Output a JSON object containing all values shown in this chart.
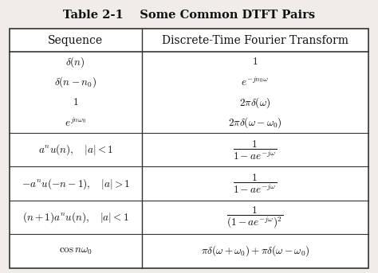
{
  "title": "Table 2-1    Some Common DTFT Pairs",
  "col1_header": "Sequence",
  "col2_header": "Discrete-Time Fourier Transform",
  "group1": [
    [
      "$\\delta(n)$",
      "$1$"
    ],
    [
      "$\\delta(n - n_0)$",
      "$e^{-jn_0\\omega}$"
    ],
    [
      "$1$",
      "$2\\pi\\delta(\\omega)$"
    ],
    [
      "$e^{jn\\omega_0}$",
      "$2\\pi\\delta(\\omega - \\omega_0)$"
    ]
  ],
  "group2": [
    [
      "$a^nu(n), \\quad |a| < 1$",
      "$\\dfrac{1}{1 - ae^{-j\\omega}}$"
    ],
    [
      "$-a^nu(-n-1), \\quad |a| > 1$",
      "$\\dfrac{1}{1 - ae^{-j\\omega}}$"
    ],
    [
      "$(n+1)a^nu(n), \\quad |a| < 1$",
      "$\\dfrac{1}{(1 - ae^{-j\\omega})^2}$"
    ],
    [
      "$\\cos n\\omega_0$",
      "$\\pi\\delta(\\omega + \\omega_0) + \\pi\\delta(\\omega - \\omega_0)$"
    ]
  ],
  "line_color": "#333333",
  "bg_color": "#f0ece8",
  "text_color": "#111111",
  "title_fontsize": 10.5,
  "header_fontsize": 10,
  "cell_fontsize": 9.5
}
